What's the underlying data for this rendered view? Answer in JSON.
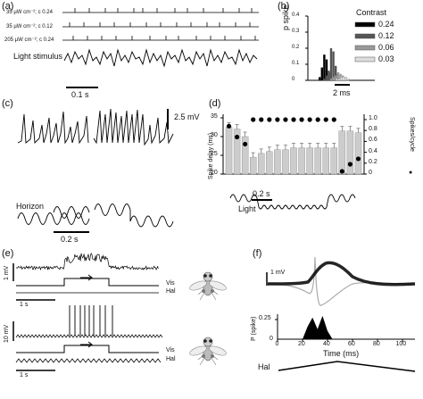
{
  "panels": {
    "a": {
      "label": "(a)",
      "rows": [
        {
          "text": "35 µW cm⁻²; c 0.24"
        },
        {
          "text": "35 µW cm⁻²; c 0.12"
        },
        {
          "text": "205 µW cm⁻²; c 0.24"
        }
      ],
      "stimulus_label": "Light stimulus",
      "scale_label": "0.1 s"
    },
    "b": {
      "label": "(b)",
      "legend_title": "Contrast",
      "legend": [
        {
          "name": "0.24",
          "color": "#000000"
        },
        {
          "name": "0.12",
          "color": "#555555"
        },
        {
          "name": "0.06",
          "color": "#999999"
        },
        {
          "name": "0.03",
          "color": "#dddddd"
        }
      ],
      "ylabel": "p spike",
      "yticks": [
        "0.4",
        "0.3",
        "0.2",
        "0.1",
        "0"
      ],
      "scale_label": "2 ms"
    },
    "c": {
      "label": "(c)",
      "scale_label": "2.5 mV",
      "horizon_label": "Horizon",
      "time_label": "0.2 s"
    },
    "d": {
      "label": "(d)",
      "ylabel_left": "Spike delay (ms)",
      "ylabel_right": "Spikes/cycle",
      "yticks_left": [
        "35",
        "30",
        "25",
        "20"
      ],
      "yticks_right": [
        "1.0",
        "0.8",
        "0.6",
        "0.4",
        "0.2",
        "0"
      ],
      "light_label": "Light",
      "time_label": "0.2 s"
    },
    "e": {
      "label": "(e)",
      "scale_top": "1 mV",
      "scale_bottom": "10 mV",
      "time_top": "1 s",
      "time_bottom": "1 s",
      "vis_label": "Vis",
      "hal_label": "Hal"
    },
    "f": {
      "label": "(f)",
      "scale_label": "1 mV",
      "ylabel": "P (spike)",
      "ytick": "0.25",
      "ytick_zero": "0",
      "xlabel": "Time (ms)",
      "xticks": [
        "0",
        "20",
        "40",
        "60",
        "80",
        "100"
      ],
      "hal_label": "Hal"
    }
  },
  "chart_data": [
    {
      "type": "bar",
      "title": "",
      "ylabel": "p spike",
      "ylim": [
        0,
        0.4
      ],
      "legend_title": "Contrast",
      "series": [
        {
          "name": "0.24",
          "values": [
            0.02,
            0.08,
            0.16,
            0.13,
            0.05,
            0.01
          ]
        },
        {
          "name": "0.12",
          "values": [
            0.01,
            0.03,
            0.06,
            0.2,
            0.18,
            0.09,
            0.04,
            0.02
          ]
        },
        {
          "name": "0.06",
          "values": [
            0.01,
            0.02,
            0.03,
            0.05,
            0.04,
            0.03,
            0.02,
            0.01
          ]
        },
        {
          "name": "0.03",
          "values": [
            0.01,
            0.01,
            0.02,
            0.02,
            0.02,
            0.01
          ]
        }
      ],
      "legend_position": "top-right"
    },
    {
      "type": "bar",
      "title": "",
      "ylabel": "Spike delay (ms)",
      "ylim": [
        20,
        35
      ],
      "values": [
        32.5,
        32,
        30,
        24.5,
        25.5,
        26,
        26.5,
        26.5,
        27,
        27,
        27,
        27,
        27,
        27,
        31.5,
        31.5,
        31
      ],
      "y2label": "Spikes/cycle",
      "y2lim": [
        0,
        1.0
      ],
      "y2_values": [
        0.88,
        0.68,
        0.55,
        1.0,
        1.0,
        1.0,
        1.0,
        1.0,
        1.0,
        1.0,
        1.0,
        1.0,
        1.0,
        1.0,
        0.05,
        0.18,
        0.28
      ]
    },
    {
      "type": "area",
      "title": "",
      "ylabel": "P (spike)",
      "xlabel": "Time (ms)",
      "xlim": [
        0,
        110
      ],
      "ylim": [
        0,
        0.3
      ],
      "x": [
        20,
        24,
        28,
        32,
        36,
        40,
        44
      ],
      "y": [
        0,
        0.15,
        0.26,
        0.12,
        0.28,
        0.1,
        0
      ]
    }
  ]
}
